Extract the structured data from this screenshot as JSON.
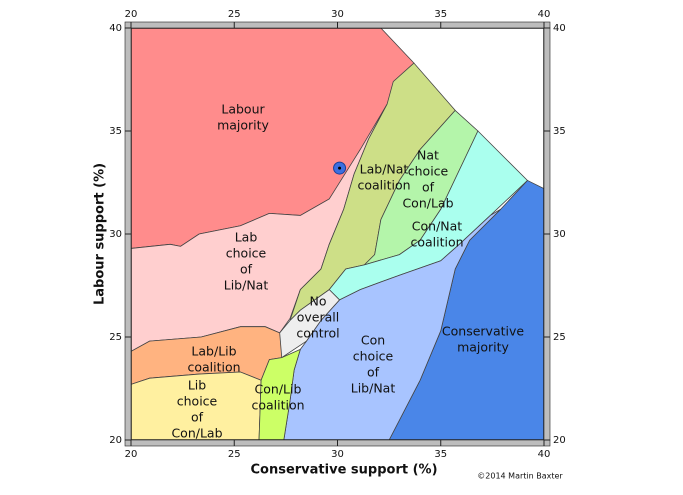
{
  "chart_data": {
    "type": "region-map",
    "xlabel": "Conservative support (%)",
    "ylabel": "Labour support (%)",
    "credit": "©2014 Martin Baxter",
    "xlim": [
      20,
      40
    ],
    "ylim": [
      20,
      40
    ],
    "xticks": [
      20,
      25,
      30,
      35,
      40
    ],
    "yticks": [
      20,
      25,
      30,
      35,
      40
    ],
    "regions": [
      {
        "label": [
          "Labour",
          "majority"
        ],
        "color": "#ff8c8c",
        "points": [
          [
            20,
            40
          ],
          [
            32.1,
            40
          ],
          [
            33.7,
            38.3
          ],
          [
            32.5,
            36.5
          ],
          [
            32.3,
            35.0
          ],
          [
            31.1,
            34.1
          ],
          [
            30.1,
            32.4
          ],
          [
            29.6,
            31.7
          ],
          [
            28.2,
            30.9
          ],
          [
            26.7,
            31.0
          ],
          [
            25.3,
            30.4
          ],
          [
            23.3,
            30.0
          ],
          [
            22.4,
            29.4
          ],
          [
            21.9,
            29.5
          ],
          [
            20,
            29.3
          ]
        ]
      },
      {
        "label": [
          "Lab",
          "choice",
          "of",
          "Lib/Nat"
        ],
        "color": "#ffcfcf",
        "points": [
          [
            20,
            29.3
          ],
          [
            21.9,
            29.5
          ],
          [
            22.4,
            29.4
          ],
          [
            23.3,
            30.0
          ],
          [
            25.3,
            30.4
          ],
          [
            26.7,
            31.0
          ],
          [
            28.2,
            30.9
          ],
          [
            29.6,
            31.7
          ],
          [
            31.1,
            34.1
          ],
          [
            32.4,
            36.3
          ],
          [
            31.5,
            34.6
          ],
          [
            30.8,
            32.9
          ],
          [
            30.3,
            31.2
          ],
          [
            29.6,
            29.5
          ],
          [
            29.2,
            28.3
          ],
          [
            28.2,
            27.3
          ],
          [
            27.7,
            25.9
          ],
          [
            27.2,
            25.2
          ],
          [
            26.5,
            25.5
          ],
          [
            25.3,
            25.5
          ],
          [
            23.4,
            25.0
          ],
          [
            20.9,
            24.8
          ],
          [
            20,
            24.3
          ]
        ]
      },
      {
        "label": [
          "Lab/Nat",
          "coalition"
        ],
        "color": "#cddf87",
        "points": [
          [
            33.7,
            38.3
          ],
          [
            32.7,
            37.4
          ],
          [
            32.4,
            36.3
          ],
          [
            31.5,
            34.6
          ],
          [
            30.8,
            32.9
          ],
          [
            30.3,
            31.2
          ],
          [
            29.6,
            29.5
          ],
          [
            29.2,
            28.3
          ],
          [
            28.2,
            27.3
          ],
          [
            27.7,
            25.8
          ],
          [
            28.2,
            26.3
          ],
          [
            29.6,
            27.3
          ],
          [
            30.4,
            28.3
          ],
          [
            31.3,
            28.5
          ],
          [
            31.8,
            29.0
          ],
          [
            32.1,
            30.7
          ],
          [
            33.0,
            32.6
          ],
          [
            34.0,
            34.1
          ],
          [
            35.7,
            36.0
          ]
        ]
      },
      {
        "label": [
          "Nat",
          "choice",
          "of",
          "Con/Lab"
        ],
        "color": "#b4f5aa",
        "points": [
          [
            35.7,
            36.0
          ],
          [
            34.0,
            34.1
          ],
          [
            33.0,
            32.6
          ],
          [
            32.1,
            30.7
          ],
          [
            31.8,
            29.0
          ],
          [
            31.3,
            28.5
          ],
          [
            33.0,
            29.0
          ],
          [
            34.0,
            29.7
          ],
          [
            35.0,
            31.2
          ],
          [
            35.9,
            33.1
          ],
          [
            36.8,
            35.0
          ]
        ]
      },
      {
        "label": [
          "Con/Nat",
          "coalition"
        ],
        "color": "#aaffee",
        "points": [
          [
            36.8,
            35.0
          ],
          [
            39.2,
            32.6
          ],
          [
            37.4,
            30.9
          ],
          [
            35.9,
            29.5
          ],
          [
            35.0,
            28.7
          ],
          [
            33.0,
            28.0
          ],
          [
            31.1,
            27.3
          ],
          [
            30.1,
            26.8
          ],
          [
            29.6,
            27.3
          ],
          [
            30.4,
            28.3
          ],
          [
            31.3,
            28.5
          ],
          [
            33.0,
            29.0
          ],
          [
            34.0,
            29.7
          ],
          [
            35.0,
            31.2
          ],
          [
            35.9,
            33.1
          ]
        ]
      },
      {
        "label": [
          "No",
          "overall",
          "control"
        ],
        "color": "#eeeeee",
        "points": [
          [
            27.7,
            25.8
          ],
          [
            28.2,
            26.3
          ],
          [
            29.6,
            27.3
          ],
          [
            30.1,
            26.8
          ],
          [
            29.2,
            25.8
          ],
          [
            28.5,
            24.8
          ],
          [
            27.3,
            24.0
          ],
          [
            26.8,
            24.5
          ],
          [
            27.2,
            25.2
          ]
        ]
      },
      {
        "label": [
          "Conservative",
          "majority"
        ],
        "color": "#4a86e8",
        "points": [
          [
            39.2,
            32.6
          ],
          [
            40,
            32.2
          ],
          [
            40,
            20
          ],
          [
            32.5,
            20
          ],
          [
            34.0,
            22.9
          ],
          [
            35.0,
            25.3
          ],
          [
            35.7,
            28.3
          ],
          [
            36.4,
            29.7
          ],
          [
            37.9,
            31.2
          ]
        ]
      },
      {
        "label": [
          "Con",
          "choice",
          "of",
          "Lib/Nat"
        ],
        "color": "#a8c4ff",
        "points": [
          [
            27.4,
            20
          ],
          [
            27.7,
            21.9
          ],
          [
            27.9,
            23.4
          ],
          [
            28.2,
            24.4
          ],
          [
            28.5,
            24.8
          ],
          [
            29.2,
            25.8
          ],
          [
            30.1,
            26.8
          ],
          [
            31.1,
            27.3
          ],
          [
            33.0,
            28.0
          ],
          [
            35.0,
            28.7
          ],
          [
            35.9,
            29.5
          ],
          [
            37.4,
            30.9
          ],
          [
            37.9,
            31.2
          ],
          [
            36.4,
            29.7
          ],
          [
            35.7,
            28.3
          ],
          [
            35.0,
            25.3
          ],
          [
            34.0,
            22.9
          ],
          [
            32.5,
            20
          ]
        ]
      },
      {
        "label": [
          "Lab/Lib",
          "coalition"
        ],
        "color": "#ffb380",
        "points": [
          [
            20,
            22.7
          ],
          [
            20.9,
            23.0
          ],
          [
            23.3,
            23.2
          ],
          [
            25.3,
            23.3
          ],
          [
            26.3,
            22.9
          ],
          [
            26.7,
            23.9
          ],
          [
            27.3,
            24.0
          ],
          [
            27.2,
            25.2
          ],
          [
            26.5,
            25.5
          ],
          [
            25.3,
            25.5
          ],
          [
            23.4,
            25.0
          ],
          [
            20.9,
            24.8
          ],
          [
            20,
            24.3
          ]
        ]
      },
      {
        "label": [
          "Lib",
          "choice",
          "of",
          "Con/Lab"
        ],
        "color": "#fff0a0",
        "points": [
          [
            20,
            20
          ],
          [
            26.2,
            20
          ],
          [
            26.3,
            22.9
          ],
          [
            25.3,
            23.3
          ],
          [
            23.3,
            23.2
          ],
          [
            20.9,
            23.0
          ],
          [
            20,
            22.7
          ]
        ]
      },
      {
        "label": [
          "Con/Lib",
          "coalition"
        ],
        "color": "#ccff66",
        "points": [
          [
            26.2,
            20
          ],
          [
            26.3,
            22.9
          ],
          [
            26.7,
            23.9
          ],
          [
            27.3,
            24.0
          ],
          [
            28.2,
            24.4
          ],
          [
            27.9,
            23.4
          ],
          [
            27.7,
            21.9
          ],
          [
            27.4,
            20
          ]
        ]
      }
    ],
    "point": {
      "x": 30.1,
      "y": 33.2,
      "color": "#3c6fe0"
    }
  }
}
